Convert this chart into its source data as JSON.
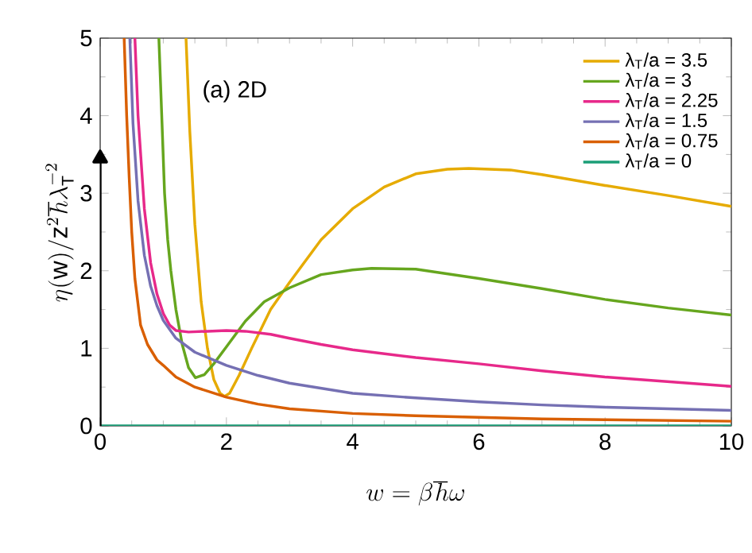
{
  "chart_data": {
    "type": "line",
    "xlabel": "w = \\beta\\hbar\\omega",
    "ylabel": "\\eta(\\mathrm{w})/\\mathrm{z}^2\\hbar\\lambda_\\mathrm{T}^{-2}",
    "annotations": [
      "(a) 2D"
    ],
    "xlim": [
      0,
      10
    ],
    "ylim": [
      0,
      5
    ],
    "xticks": [
      0,
      2,
      4,
      6,
      8,
      10
    ],
    "yticks": [
      0,
      1,
      2,
      3,
      4,
      5
    ],
    "legend": "top right",
    "grid": false,
    "series": [
      {
        "name": "λ$_{T}$/a = 3.5",
        "color": "#e6ab02",
        "x": [
          1.36,
          1.42,
          1.5,
          1.6,
          1.7,
          1.8,
          1.9,
          1.97,
          2.05,
          2.2,
          2.4,
          2.7,
          3.0,
          3.5,
          4.0,
          4.5,
          5.0,
          5.5,
          5.84,
          6.5,
          7.0,
          8.0,
          9.0,
          10.0
        ],
        "values": [
          5,
          3.8,
          2.6,
          1.6,
          1.0,
          0.6,
          0.42,
          0.38,
          0.42,
          0.65,
          1.0,
          1.5,
          1.85,
          2.4,
          2.8,
          3.08,
          3.25,
          3.31,
          3.32,
          3.3,
          3.24,
          3.1,
          2.97,
          2.83
        ]
      },
      {
        "name": "λ$_{T}$/a = 3",
        "color": "#66a61e",
        "x": [
          0.93,
          0.98,
          1.02,
          1.07,
          1.12,
          1.2,
          1.3,
          1.4,
          1.51,
          1.65,
          1.8,
          2.0,
          2.3,
          2.6,
          3.0,
          3.5,
          4.0,
          4.3,
          5.0,
          6.0,
          7.0,
          8.0,
          9.0,
          10.0
        ],
        "values": [
          5,
          3.9,
          3.0,
          2.4,
          2.0,
          1.5,
          1.05,
          0.75,
          0.62,
          0.66,
          0.8,
          1.02,
          1.35,
          1.6,
          1.78,
          1.95,
          2.01,
          2.03,
          2.02,
          1.9,
          1.77,
          1.63,
          1.52,
          1.43
        ]
      },
      {
        "name": "λ$_{T}$/a = 2.25",
        "color": "#e7298a",
        "x": [
          0.55,
          0.6,
          0.7,
          0.8,
          0.9,
          1.0,
          1.1,
          1.2,
          1.4,
          1.7,
          2.0,
          2.3,
          2.7,
          3.0,
          3.5,
          4.0,
          5.0,
          6.0,
          7.0,
          8.0,
          9.0,
          10.0
        ],
        "values": [
          5,
          4.0,
          2.8,
          2.1,
          1.7,
          1.45,
          1.3,
          1.23,
          1.21,
          1.22,
          1.23,
          1.22,
          1.18,
          1.13,
          1.05,
          0.98,
          0.88,
          0.8,
          0.71,
          0.63,
          0.57,
          0.51
        ]
      },
      {
        "name": "λ$_{T}$/a = 1.5",
        "color": "#7570b3",
        "x": [
          0.47,
          0.52,
          0.6,
          0.7,
          0.8,
          0.9,
          1.0,
          1.2,
          1.5,
          2.0,
          2.5,
          3.0,
          4.0,
          5.0,
          6.0,
          7.0,
          8.0,
          9.0,
          10.0
        ],
        "values": [
          5,
          3.9,
          2.9,
          2.2,
          1.8,
          1.55,
          1.36,
          1.13,
          0.95,
          0.78,
          0.65,
          0.55,
          0.42,
          0.36,
          0.31,
          0.27,
          0.24,
          0.22,
          0.2
        ]
      },
      {
        "name": "λ$_{T}$/a = 0.75",
        "color": "#d95f02",
        "x": [
          0.38,
          0.42,
          0.46,
          0.5,
          0.55,
          0.64,
          0.75,
          0.9,
          1.0,
          1.2,
          1.5,
          2.0,
          2.5,
          3.0,
          4.0,
          5.0,
          6.0,
          7.0,
          8.0,
          9.0,
          10.0
        ],
        "values": [
          5,
          4.0,
          3.2,
          2.5,
          1.9,
          1.3,
          1.05,
          0.85,
          0.78,
          0.63,
          0.5,
          0.37,
          0.28,
          0.22,
          0.16,
          0.13,
          0.11,
          0.09,
          0.08,
          0.07,
          0.06
        ]
      },
      {
        "name": "λ$_{T}$/a = 0",
        "color": "#1b9e77",
        "x": [
          0,
          10
        ],
        "values": [
          0,
          0
        ]
      },
      {
        "color": "#000000",
        "x": [
          0,
          0
        ],
        "values": [
          0,
          3.45
        ],
        "marker": "triangle"
      }
    ]
  }
}
